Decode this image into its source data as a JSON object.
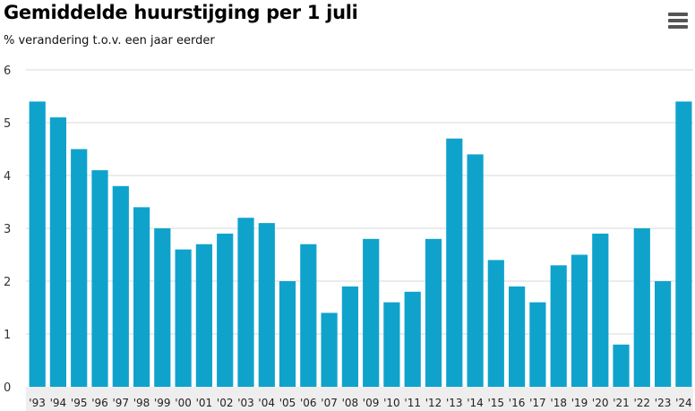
{
  "header": {
    "title": "Gemiddelde huurstijging per 1 juli",
    "subtitle": "% verandering t.o.v. een jaar eerder",
    "menu_icon": "hamburger-menu-icon"
  },
  "colors": {
    "bar": "#0fa3cc",
    "grid": "#d9d9d9",
    "axis_band": "#eeeeee"
  },
  "chart_data": {
    "type": "bar",
    "title": "Gemiddelde huurstijging per 1 juli",
    "subtitle": "% verandering t.o.v. een jaar eerder",
    "xlabel": "",
    "ylabel": "",
    "ylim": [
      0,
      6
    ],
    "yticks": [
      0,
      1,
      2,
      3,
      4,
      5,
      6
    ],
    "grid": true,
    "categories": [
      "'93",
      "'94",
      "'95",
      "'96",
      "'97",
      "'98",
      "'99",
      "'00",
      "'01",
      "'02",
      "'03",
      "'04",
      "'05",
      "'06",
      "'07",
      "'08",
      "'09",
      "'10",
      "'11",
      "'12",
      "'13",
      "'14",
      "'15",
      "'16",
      "'17",
      "'18",
      "'19",
      "'20",
      "'21",
      "'22",
      "'23",
      "'24"
    ],
    "values": [
      5.4,
      5.1,
      4.5,
      4.1,
      3.8,
      3.4,
      3.0,
      2.6,
      2.7,
      2.9,
      3.2,
      3.1,
      2.0,
      2.7,
      1.4,
      1.9,
      2.8,
      1.6,
      1.8,
      2.8,
      4.7,
      4.4,
      2.4,
      1.9,
      1.6,
      2.3,
      2.5,
      2.9,
      0.8,
      3.0,
      2.0,
      5.4
    ]
  }
}
